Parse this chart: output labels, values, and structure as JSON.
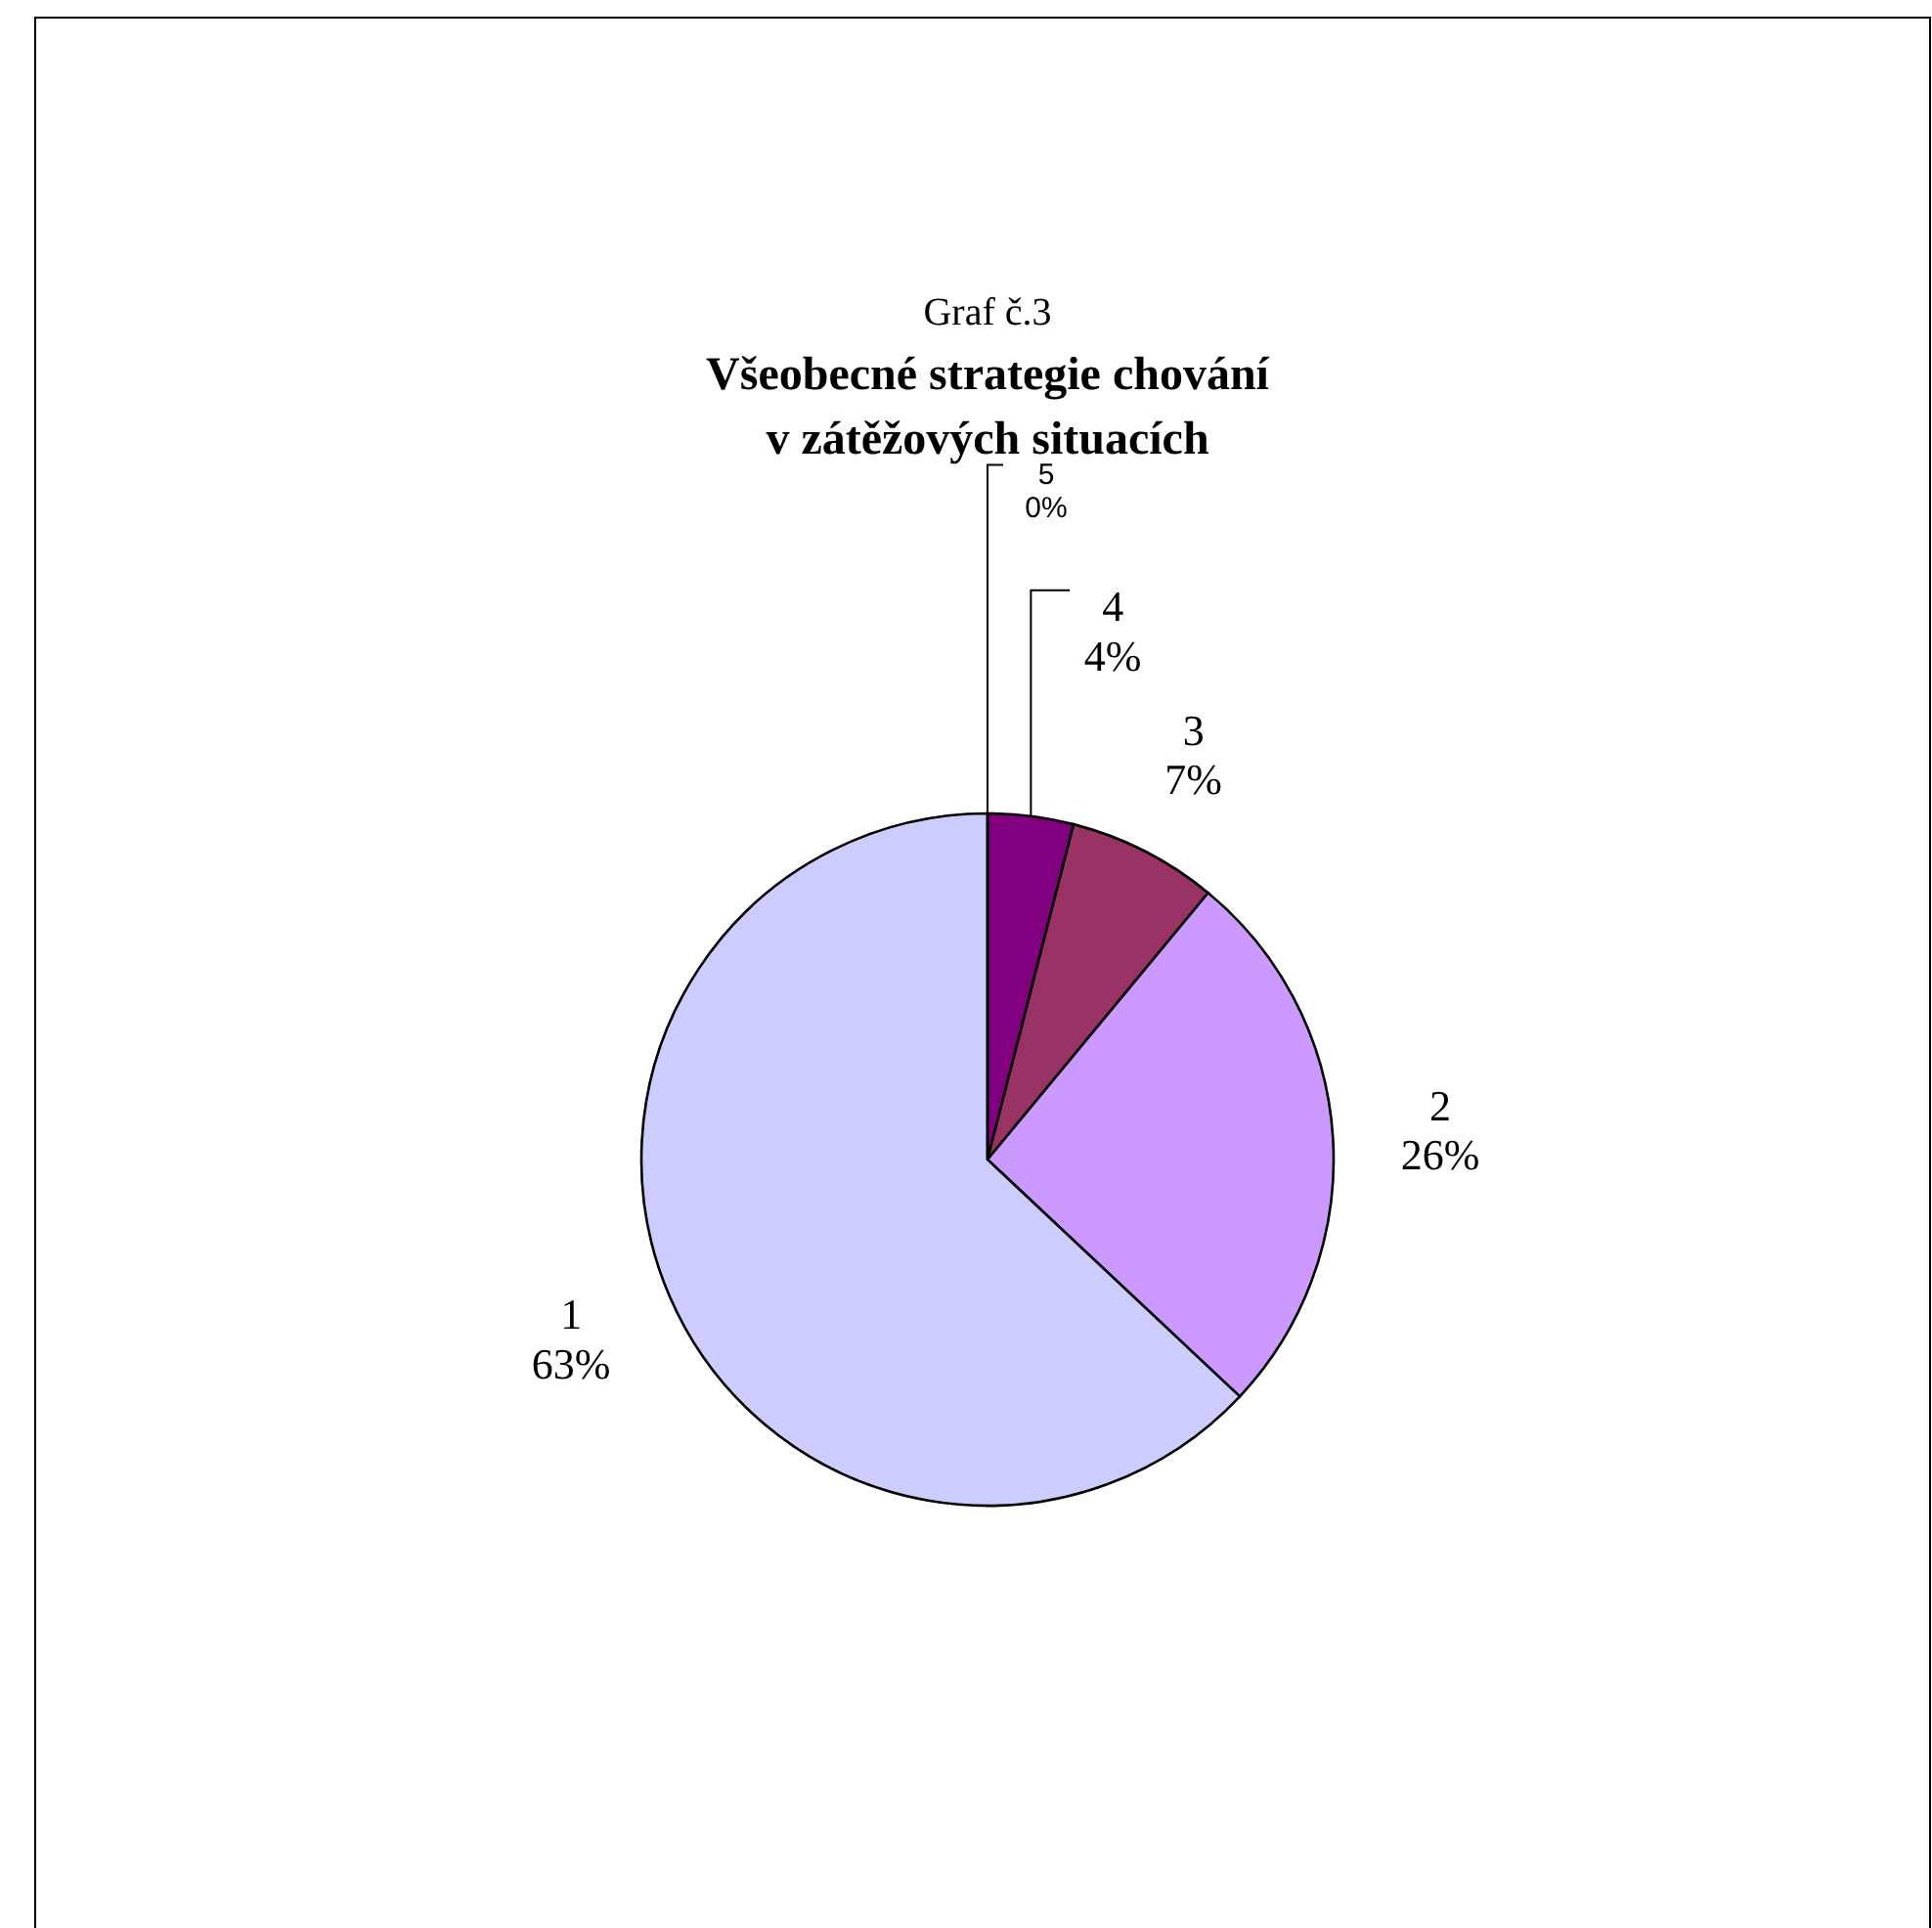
{
  "chart_data": {
    "type": "pie",
    "title": "Graf č.3",
    "subtitle": "Všeobecné strategie chování\nv zátěžových situacích",
    "categories": [
      "4",
      "3",
      "2",
      "1",
      "5"
    ],
    "values": [
      4,
      7,
      26,
      63,
      0
    ],
    "value_labels": [
      "4%",
      "7%",
      "26%",
      "63%",
      "0%"
    ],
    "colors": [
      "#800080",
      "#993366",
      "#cc99ff",
      "#ccccff",
      "#ffffcc"
    ]
  }
}
